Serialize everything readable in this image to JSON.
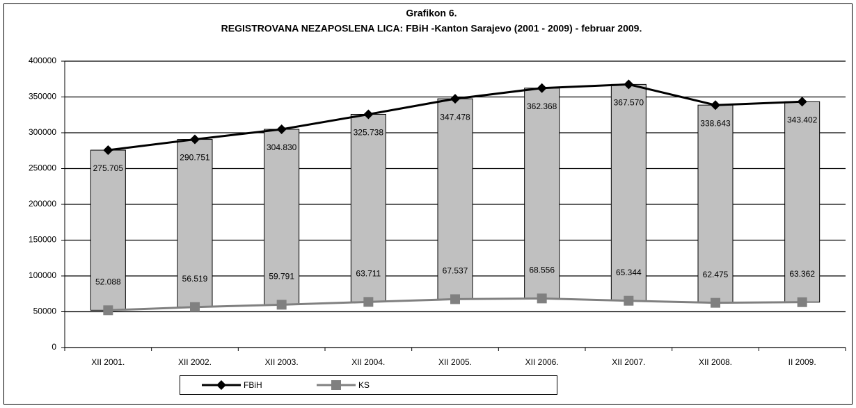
{
  "chart_data": {
    "type": "line",
    "title": "Grafikon 6.",
    "subtitle": "REGISTROVANA NEZAPOSLENA LICA: FBiH -Kanton Sarajevo (2001 - 2009) - februar 2009.",
    "categories": [
      "XII 2001.",
      "XII 2002.",
      "XII 2003.",
      "XII 2004.",
      "XII 2005.",
      "XII  2006.",
      "XII 2007.",
      "XII 2008.",
      "II 2009."
    ],
    "series": [
      {
        "name": "FBiH",
        "color": "#000000",
        "marker": "diamond",
        "values": [
          275705,
          290751,
          304830,
          325738,
          347478,
          362368,
          367570,
          338643,
          343402
        ],
        "value_labels": [
          "275.705",
          "290.751",
          "304.830",
          "325.738",
          "347.478",
          "362.368",
          "367.570",
          "338.643",
          "343.402"
        ]
      },
      {
        "name": "KS",
        "color": "#808080",
        "marker": "square",
        "values": [
          52088,
          56519,
          59791,
          63711,
          67537,
          68556,
          65344,
          62475,
          63362
        ],
        "value_labels": [
          "52.088",
          "56.519",
          "59.791",
          "63.711",
          "67.537",
          "68.556",
          "65.344",
          "62.475",
          "63.362"
        ]
      }
    ],
    "high_low_bars": true,
    "bar_color": "#c0c0c0",
    "ylim": [
      0,
      400000
    ],
    "yticks": [
      0,
      50000,
      100000,
      150000,
      200000,
      250000,
      300000,
      350000,
      400000
    ],
    "grid": true,
    "legend": "bottom"
  }
}
